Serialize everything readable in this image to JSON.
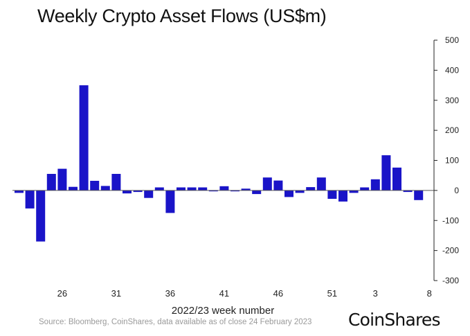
{
  "chart_data": {
    "type": "bar",
    "title": "Weekly Crypto Asset Flows (US$m)",
    "xlabel": "2022/23 week number",
    "ylabel": "",
    "ylim": [
      -300,
      500
    ],
    "yticks": [
      500,
      400,
      300,
      200,
      100,
      0,
      -100,
      -200,
      -300
    ],
    "y_axis_position": "right",
    "bar_color": "#1a14c8",
    "categories": [
      "22",
      "23",
      "24",
      "25",
      "26",
      "27",
      "28",
      "29",
      "30",
      "31",
      "32",
      "33",
      "34",
      "35",
      "36",
      "37",
      "38",
      "39",
      "40",
      "41",
      "42",
      "43",
      "44",
      "45",
      "46",
      "47",
      "48",
      "49",
      "50",
      "51",
      "52",
      "1",
      "2",
      "3",
      "4",
      "5",
      "6",
      "7",
      "8"
    ],
    "xtick_labels": [
      "26",
      "31",
      "36",
      "41",
      "46",
      "51",
      "3",
      "8"
    ],
    "values": [
      -8,
      -60,
      -170,
      55,
      72,
      12,
      350,
      32,
      15,
      55,
      -10,
      -5,
      -25,
      10,
      -75,
      10,
      10,
      10,
      -3,
      14,
      -3,
      6,
      -12,
      43,
      33,
      -22,
      -8,
      11,
      43,
      -28,
      -37,
      -8,
      10,
      37,
      117,
      76,
      -5,
      -32,
      0
    ]
  },
  "source": "Source: Bloomberg, CoinShares, data available as of close 24 February 2023",
  "logo_text": "CoinShares"
}
